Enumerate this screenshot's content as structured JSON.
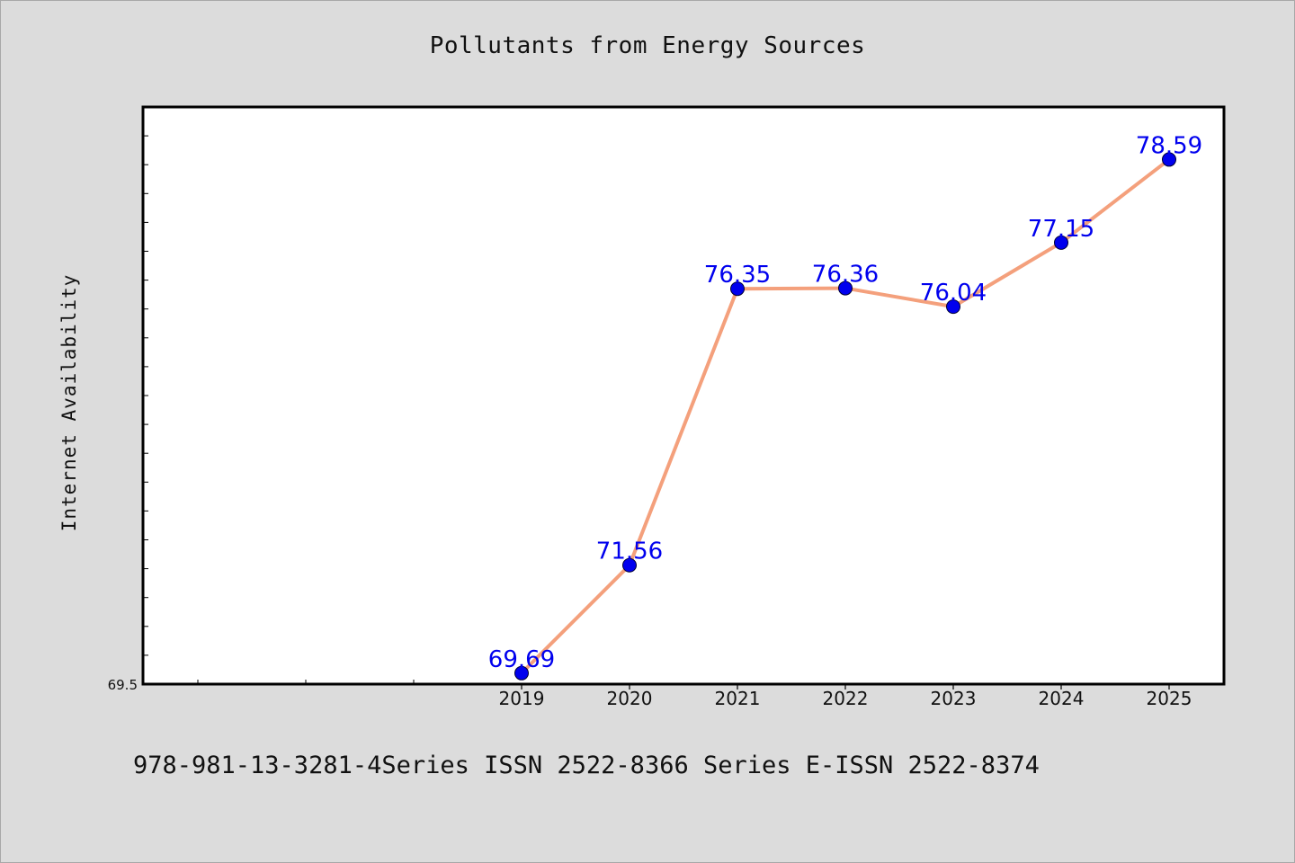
{
  "chart_data": {
    "type": "line",
    "title": "Pollutants from Energy Sources",
    "xlabel": "",
    "ylabel": "Internet Availability",
    "categories": [
      "2019",
      "2020",
      "2021",
      "2022",
      "2023",
      "2024",
      "2025"
    ],
    "series": [
      {
        "values": [
          69.69,
          71.56,
          76.35,
          76.36,
          76.04,
          77.15,
          78.59
        ]
      }
    ],
    "data_labels": [
      "69.69",
      "71.56",
      "76.35",
      "76.36",
      "76.04",
      "77.15",
      "78.59"
    ],
    "ylim": [
      69.5,
      79.5
    ],
    "y_tick_label": "69.5",
    "grid": false,
    "legend": "none",
    "line_color": "#f4a07c",
    "marker_color": "#0000ee",
    "label_color": "#0000ee"
  },
  "footer": {
    "text": "978-981-13-3281-4Series ISSN 2522-8366 Series E-ISSN 2522-8374"
  }
}
